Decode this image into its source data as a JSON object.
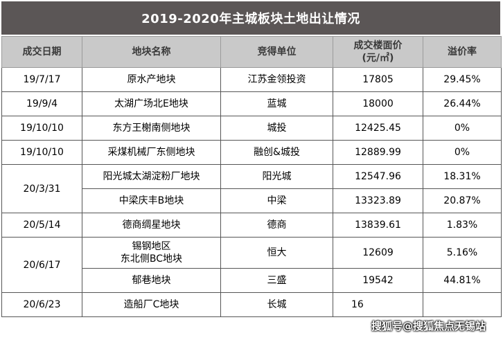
{
  "title": "2019-2020年主城板块土地出让情况",
  "headers": {
    "date": "成交日期",
    "plot": "地块名称",
    "buyer": "竞得单位",
    "price_line1": "成交楼面价",
    "price_line2": "(元/㎡)",
    "premium": "溢价率"
  },
  "rows": [
    {
      "date": "19/7/17",
      "plot": "原水产地块",
      "buyer": "江苏金领投资",
      "price": "17805",
      "premium": "29.45%"
    },
    {
      "date": "19/9/4",
      "plot": "太湖广场北E地块",
      "buyer": "蓝城",
      "price": "18000",
      "premium": "26.44%"
    },
    {
      "date": "19/10/10",
      "plot": "东方王榭南侧地块",
      "buyer": "城投",
      "price": "12425.45",
      "premium": "0%"
    },
    {
      "date": "19/10/10",
      "plot": "采煤机械厂东侧地块",
      "buyer": "融创&城投",
      "price": "12889.99",
      "premium": "0%"
    },
    {
      "date": "20/3/31",
      "plot": "阳光城太湖淀粉厂地块",
      "buyer": "阳光城",
      "price": "12547.96",
      "premium": "18.31%"
    },
    {
      "date": "",
      "plot": "中梁庆丰B地块",
      "buyer": "中梁",
      "price": "13323.89",
      "premium": "20.87%"
    },
    {
      "date": "20/5/14",
      "plot": "德商绸星地块",
      "buyer": "德商",
      "price": "13839.61",
      "premium": "1.83%"
    },
    {
      "date": "20/6/17",
      "plot_line1": "锡钢地区",
      "plot_line2": "东北侧BC地块",
      "buyer": "恒大",
      "price": "12609",
      "premium": "5.16%"
    },
    {
      "date": "",
      "plot": "郁巷地块",
      "buyer": "三盛",
      "price": "19542",
      "premium": "44.81%"
    },
    {
      "date": "20/6/23",
      "plot": "造船厂C地块",
      "buyer": "长城",
      "price": "16",
      "premium": ""
    }
  ],
  "watermark": "搜狐号@搜狐焦点无锡站"
}
